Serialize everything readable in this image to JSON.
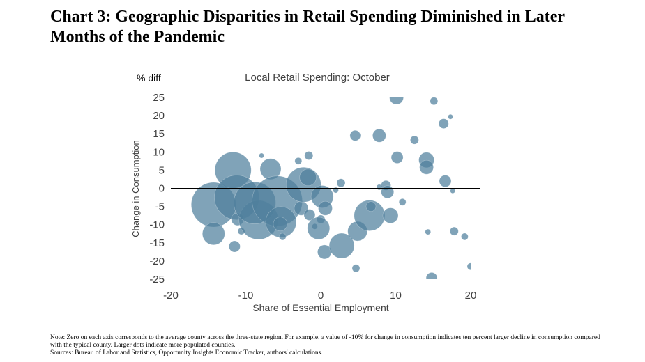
{
  "headline": "Chart 3: Geographic Disparities in Retail Spending Diminished in Later Months of the Pandemic",
  "notes": {
    "note": "Note: Zero on each axis corresponds to the average county across the three-state region. For example, a value of -10% for change in consumption indicates ten percent larger decline in consumption compared with the typical county. Larger dots indicate more populated counties.",
    "sources": "Sources: Bureau of Labor and Statistics, Opportunity Insights Economic Tracker, authors' calculations."
  },
  "colors": {
    "bubble": "#4f7f9c",
    "zero_line": "#000000",
    "text": "#404040"
  },
  "chart_data": {
    "type": "scatter",
    "title": "Local Retail Spending: October",
    "unit_label": "% diff",
    "xlabel": "Share of Essential Employment",
    "ylabel": "Change in Consumption",
    "xlim": [
      -20,
      20
    ],
    "ylim": [
      -25,
      25
    ],
    "x_ticks": [
      "-20",
      "-10",
      "0",
      "10",
      "20"
    ],
    "y_ticks": [
      "25",
      "20",
      "15",
      "10",
      "5",
      "0",
      "-5",
      "-10",
      "-15",
      "-20",
      "-25"
    ],
    "grid": false,
    "zero_lines": true,
    "points": [
      {
        "x": -14.3,
        "y": -4.5,
        "r": 32
      },
      {
        "x": -11.7,
        "y": 5.0,
        "r": 26
      },
      {
        "x": -11.2,
        "y": -2.5,
        "r": 32
      },
      {
        "x": -14.3,
        "y": -12.5,
        "r": 16
      },
      {
        "x": -11.5,
        "y": -16.0,
        "r": 8
      },
      {
        "x": -11.1,
        "y": -8.5,
        "r": 9
      },
      {
        "x": -10.6,
        "y": -11.8,
        "r": 5
      },
      {
        "x": -8.3,
        "y": -8.7,
        "r": 28
      },
      {
        "x": -8.8,
        "y": -4.0,
        "r": 30
      },
      {
        "x": -7.9,
        "y": 9.0,
        "r": 3.5
      },
      {
        "x": -6.7,
        "y": 5.3,
        "r": 15
      },
      {
        "x": -5.8,
        "y": -3.5,
        "r": 36
      },
      {
        "x": -5.3,
        "y": -9.3,
        "r": 22
      },
      {
        "x": -5.1,
        "y": -13.3,
        "r": 5
      },
      {
        "x": -5.4,
        "y": -9.8,
        "r": 10
      },
      {
        "x": -3.0,
        "y": 7.5,
        "r": 5
      },
      {
        "x": -2.6,
        "y": -5.5,
        "r": 10
      },
      {
        "x": -2.3,
        "y": 1.0,
        "r": 25
      },
      {
        "x": -1.6,
        "y": 9.0,
        "r": 6
      },
      {
        "x": -1.7,
        "y": 3.0,
        "r": 12
      },
      {
        "x": -1.5,
        "y": -7.3,
        "r": 8
      },
      {
        "x": -0.8,
        "y": -10.5,
        "r": 4
      },
      {
        "x": 0.2,
        "y": -2.3,
        "r": 16
      },
      {
        "x": 0.0,
        "y": -8.5,
        "r": 6
      },
      {
        "x": -0.3,
        "y": -11.0,
        "r": 16
      },
      {
        "x": 0.6,
        "y": -5.5,
        "r": 10
      },
      {
        "x": 0.5,
        "y": -17.5,
        "r": 10
      },
      {
        "x": 2.7,
        "y": 1.5,
        "r": 6
      },
      {
        "x": 2.0,
        "y": -0.5,
        "r": 4
      },
      {
        "x": 2.8,
        "y": -15.8,
        "r": 18
      },
      {
        "x": 4.6,
        "y": 14.5,
        "r": 7.5
      },
      {
        "x": 4.7,
        "y": -22.0,
        "r": 5.5
      },
      {
        "x": 4.9,
        "y": -11.8,
        "r": 14
      },
      {
        "x": 6.5,
        "y": -7.5,
        "r": 22
      },
      {
        "x": 6.7,
        "y": -5.0,
        "r": 7
      },
      {
        "x": 7.8,
        "y": 14.5,
        "r": 9.5
      },
      {
        "x": 7.8,
        "y": 0.3,
        "r": 4
      },
      {
        "x": 8.7,
        "y": 0.8,
        "r": 7
      },
      {
        "x": 8.9,
        "y": -1.0,
        "r": 9
      },
      {
        "x": 9.3,
        "y": -7.5,
        "r": 11
      },
      {
        "x": 10.1,
        "y": 25.0,
        "r": 10
      },
      {
        "x": 10.2,
        "y": 8.5,
        "r": 8.5
      },
      {
        "x": 10.9,
        "y": -3.8,
        "r": 5
      },
      {
        "x": 12.5,
        "y": 13.3,
        "r": 6
      },
      {
        "x": 14.1,
        "y": 7.8,
        "r": 11
      },
      {
        "x": 14.1,
        "y": 5.8,
        "r": 10
      },
      {
        "x": 14.3,
        "y": -12.0,
        "r": 4
      },
      {
        "x": 14.8,
        "y": -24.7,
        "r": 8
      },
      {
        "x": 15.1,
        "y": 24.0,
        "r": 5.5
      },
      {
        "x": 16.4,
        "y": 17.8,
        "r": 7
      },
      {
        "x": 16.6,
        "y": 2.0,
        "r": 8.5
      },
      {
        "x": 17.3,
        "y": 19.7,
        "r": 3.5
      },
      {
        "x": 17.6,
        "y": -0.7,
        "r": 3.5
      },
      {
        "x": 17.8,
        "y": -11.8,
        "r": 6
      },
      {
        "x": 19.2,
        "y": -13.3,
        "r": 5
      },
      {
        "x": 20.0,
        "y": -21.5,
        "r": 5
      }
    ]
  }
}
